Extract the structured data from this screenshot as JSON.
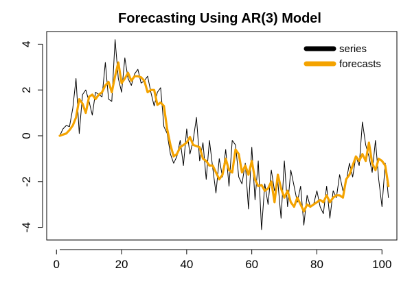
{
  "chart_data": {
    "type": "line",
    "title": "Forecasting Using AR(3) Model",
    "xlabel": "",
    "ylabel": "",
    "xlim": [
      1,
      100
    ],
    "ylim": [
      -4.3,
      4.3
    ],
    "x_ticks": [
      0,
      20,
      40,
      60,
      80,
      100
    ],
    "y_ticks": [
      -4,
      -2,
      0,
      2,
      4
    ],
    "grid": false,
    "legend_position": "top-right",
    "series": [
      {
        "name": "series",
        "color": "#000000",
        "values": [
          0,
          0.3,
          0.45,
          0.4,
          1.2,
          2.5,
          0.1,
          1.8,
          2.0,
          1.5,
          0.9,
          1.9,
          1.8,
          1.7,
          3.2,
          1.6,
          1.5,
          4.2,
          2.5,
          1.9,
          3.4,
          2.5,
          2.2,
          2.7,
          2.9,
          2.3,
          2.4,
          2.6,
          1.9,
          1.3,
          1.9,
          2.1,
          0.4,
          0.1,
          -0.8,
          -1.2,
          -0.9,
          -0.2,
          -1.3,
          0.3,
          -0.8,
          -0.2,
          0.8,
          -1.1,
          -0.3,
          -1.9,
          -0.2,
          -1.4,
          -2.5,
          -1.0,
          -1.8,
          -0.6,
          -2.2,
          -0.2,
          -0.4,
          -1.8,
          -2.1,
          -1.2,
          -3.2,
          -0.5,
          -2.8,
          -1.1,
          -4.1,
          -2.1,
          -3.0,
          -1.5,
          -2.4,
          -2.0,
          -3.6,
          -1.1,
          -3.1,
          -1.5,
          -2.2,
          -2.9,
          -2.2,
          -3.9,
          -2.6,
          -3.1,
          -3.0,
          -2.4,
          -3.1,
          -3.4,
          -2.2,
          -3.6,
          -2.4,
          -2.7,
          -1.7,
          -2.4,
          -2.0,
          -1.2,
          -1.8,
          -0.9,
          -1.3,
          0.6,
          -0.4,
          -0.9,
          -1.6,
          -0.2,
          -1.9,
          -3.1,
          -1.2,
          -2.7
        ]
      },
      {
        "name": "forecasts",
        "color": "#F4A300",
        "values": [
          0,
          0.05,
          0.1,
          0.25,
          0.45,
          0.8,
          1.6,
          1.4,
          1.0,
          1.7,
          1.8,
          1.6,
          1.8,
          1.9,
          2.2,
          2.35,
          1.9,
          2.6,
          3.2,
          2.3,
          2.5,
          2.75,
          2.4,
          2.6,
          2.6,
          2.55,
          2.4,
          1.9,
          2.0,
          2.0,
          1.35,
          1.45,
          1.3,
          0.3,
          -0.4,
          -0.9,
          -0.8,
          -0.5,
          -0.4,
          -0.3,
          -0.05,
          -0.4,
          -0.45,
          -0.5,
          -1.0,
          -1.1,
          -1.3,
          -1.3,
          -1.6,
          -1.9,
          -1.7,
          -1.0,
          -1.5,
          -1.6,
          -0.6,
          -0.8,
          -1.6,
          -1.3,
          -1.7,
          -1.1,
          -1.9,
          -2.2,
          -2.15,
          -2.4,
          -2.3,
          -2.0,
          -2.9,
          -1.7,
          -2.3,
          -2.7,
          -2.4,
          -2.9,
          -3.1,
          -2.7,
          -3.0,
          -3.3,
          -3.0,
          -3.1,
          -3.0,
          -2.9,
          -2.8,
          -2.9,
          -2.6,
          -2.9,
          -2.7,
          -2.6,
          -2.6,
          -2.7,
          -1.9,
          -1.7,
          -1.3,
          -0.9,
          -1.1,
          -0.8,
          -1.1,
          -0.3,
          -1.2,
          -1.5,
          -1.0,
          -1.1,
          -1.3,
          -2.2
        ]
      }
    ]
  }
}
